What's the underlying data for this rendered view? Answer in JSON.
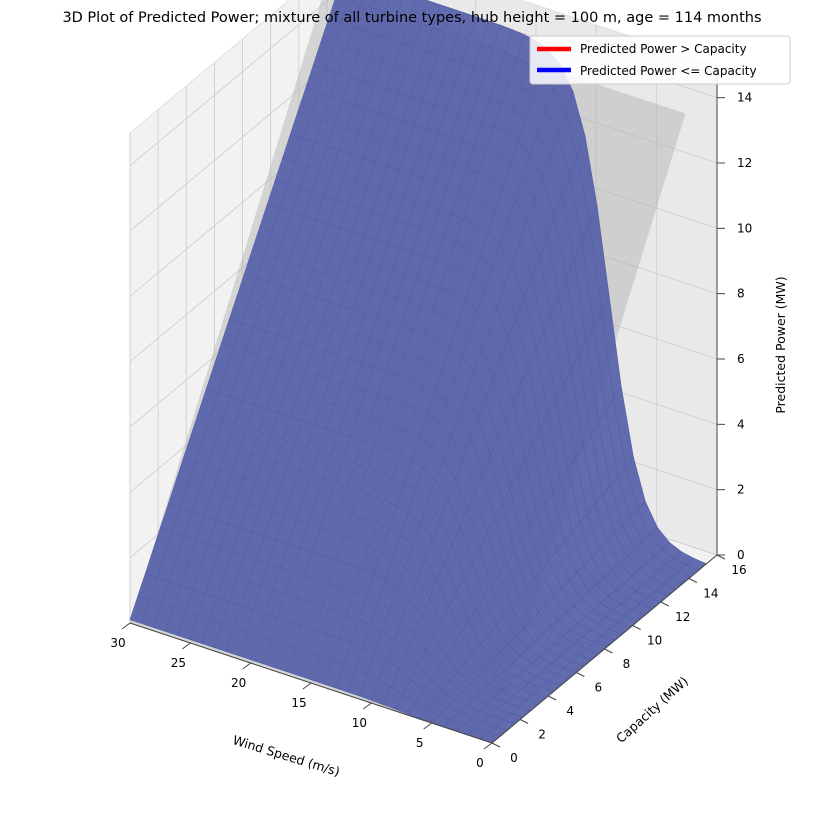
{
  "chart_data": {
    "type": "surface3d",
    "title": "3D Plot of Predicted Power; mixture of all turbine types, hub height = 100 m, age = 114 months",
    "xlabel": "Wind Speed (m/s)",
    "ylabel": "Capacity (MW)",
    "zlabel": "Predicted Power (MW)",
    "x_ticks": [
      "0",
      "5",
      "10",
      "15",
      "20",
      "25",
      "30"
    ],
    "y_ticks": [
      "0",
      "2",
      "4",
      "6",
      "8",
      "10",
      "12",
      "14",
      "16"
    ],
    "z_ticks": [
      "0",
      "2",
      "4",
      "6",
      "8",
      "10",
      "12",
      "14"
    ],
    "xlim": [
      0,
      30
    ],
    "ylim": [
      0,
      16
    ],
    "zlim": [
      0,
      15
    ],
    "grid": true,
    "legend_position": "top-right",
    "series": [
      {
        "name": "Predicted Power > Capacity",
        "color": "#ff0000",
        "surface_color": "#a52a45"
      },
      {
        "name": "Predicted Power <= Capacity",
        "color": "#0000ff",
        "surface_color": "#5560a8"
      }
    ],
    "surface_description_values": {
      "power_curve_midpoint_wind_speed": 8,
      "max_predicted_power": 15.4
    }
  }
}
